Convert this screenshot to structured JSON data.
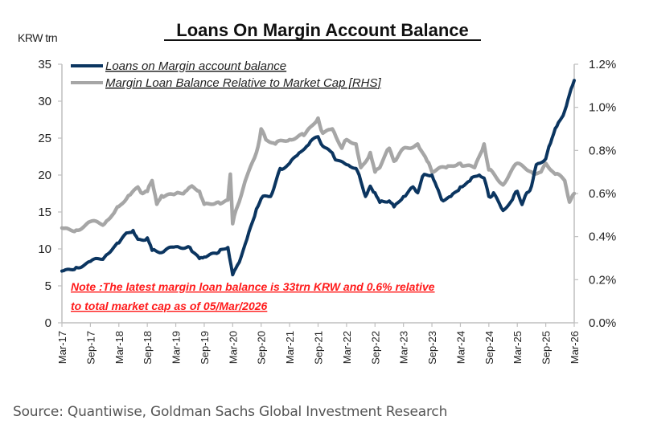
{
  "chart_data": {
    "type": "line",
    "title": "Loans On Margin Account Balance",
    "ylabel": "KRW trn",
    "ylabel_right": "",
    "ylim": [
      0,
      35
    ],
    "ylim_right": [
      0,
      1.2
    ],
    "yticks": [
      "0",
      "5",
      "10",
      "15",
      "20",
      "25",
      "30",
      "35"
    ],
    "yticks_right": [
      "0.0%",
      "0.2%",
      "0.4%",
      "0.6%",
      "0.8%",
      "1.0%",
      "1.2%"
    ],
    "xticks": [
      "Mar-17",
      "Sep-17",
      "Mar-18",
      "Sep-18",
      "Mar-19",
      "Sep-19",
      "Mar-20",
      "Sep-20",
      "Mar-21",
      "Sep-21",
      "Mar-22",
      "Sep-22",
      "Mar-23",
      "Sep-23",
      "Mar-24",
      "Sep-24",
      "Mar-25",
      "Sep-25",
      "Mar-26"
    ],
    "x_unit": "months since Mar-17",
    "xlim": [
      0,
      108
    ],
    "legend_position": "top-left",
    "grid": false,
    "series": [
      {
        "name": "Loans on Margin account balance",
        "axis": "left",
        "color": "#0b3560",
        "x": [
          0,
          3,
          6,
          9,
          12,
          14,
          15,
          16,
          18,
          19,
          21,
          24,
          27,
          29,
          30,
          33,
          35,
          36,
          37,
          39,
          41,
          42,
          44,
          45,
          46,
          48,
          50,
          52,
          54,
          55,
          57,
          58,
          60,
          62,
          63,
          64,
          65,
          66,
          67,
          69,
          70,
          72,
          74,
          75,
          76,
          78,
          79,
          80,
          82,
          84,
          86,
          88,
          89,
          90,
          91,
          93,
          95,
          96,
          97,
          98,
          99,
          100,
          102,
          103,
          104,
          105,
          106,
          107,
          108
        ],
        "values": [
          7.0,
          7.5,
          8.3,
          8.9,
          10.8,
          12.2,
          12.5,
          11.3,
          11.5,
          9.8,
          9.5,
          10.3,
          10.2,
          8.7,
          8.9,
          9.5,
          10.2,
          6.5,
          7.8,
          11.3,
          15.4,
          16.8,
          17.1,
          18.9,
          20.9,
          21.6,
          23.0,
          24.1,
          25.2,
          23.9,
          23.0,
          22.0,
          21.4,
          20.9,
          19.2,
          17.1,
          18.5,
          17.6,
          16.3,
          16.5,
          15.7,
          17.1,
          18.4,
          17.6,
          19.8,
          20.0,
          18.4,
          16.7,
          17.1,
          18.4,
          19.2,
          20.0,
          19.6,
          17.1,
          17.6,
          15.2,
          16.7,
          17.8,
          16.0,
          17.6,
          18.5,
          21.4,
          22.2,
          24.3,
          26.3,
          27.4,
          28.7,
          30.9,
          32.8
        ]
      },
      {
        "name": "Margin Loan Balance Relative to Market Cap [RHS]",
        "axis": "right",
        "unit": "%",
        "color": "#a6a6a6",
        "x": [
          0,
          3,
          6,
          9,
          11,
          12,
          14,
          16,
          17,
          18,
          19,
          20,
          21,
          24,
          26,
          27,
          29,
          30,
          33,
          35,
          35.5,
          36,
          37,
          39,
          41,
          42,
          43,
          45,
          48,
          51,
          54,
          55,
          57,
          59,
          60,
          62,
          63,
          65,
          66,
          67,
          69,
          70,
          72,
          75,
          77,
          78,
          81,
          84,
          87,
          89,
          90,
          93,
          96,
          99,
          101,
          102,
          104,
          106,
          107,
          108
        ],
        "values": [
          0.44,
          0.43,
          0.47,
          0.46,
          0.51,
          0.54,
          0.59,
          0.63,
          0.6,
          0.61,
          0.66,
          0.55,
          0.59,
          0.6,
          0.61,
          0.63,
          0.61,
          0.55,
          0.56,
          0.57,
          0.69,
          0.46,
          0.54,
          0.68,
          0.79,
          0.9,
          0.85,
          0.83,
          0.85,
          0.87,
          0.95,
          0.88,
          0.9,
          0.81,
          0.85,
          0.83,
          0.72,
          0.79,
          0.7,
          0.72,
          0.81,
          0.75,
          0.81,
          0.83,
          0.75,
          0.7,
          0.72,
          0.74,
          0.72,
          0.83,
          0.71,
          0.64,
          0.74,
          0.7,
          0.7,
          0.74,
          0.69,
          0.66,
          0.56,
          0.6
        ]
      }
    ],
    "annotations": [
      "Note :The latest margin loan balance  is 33trn KRW and 0.6% relative",
      "to total market cap as of 05/Mar/2026"
    ]
  },
  "source": "Source: Quantiwise, Goldman Sachs Global Investment Research"
}
